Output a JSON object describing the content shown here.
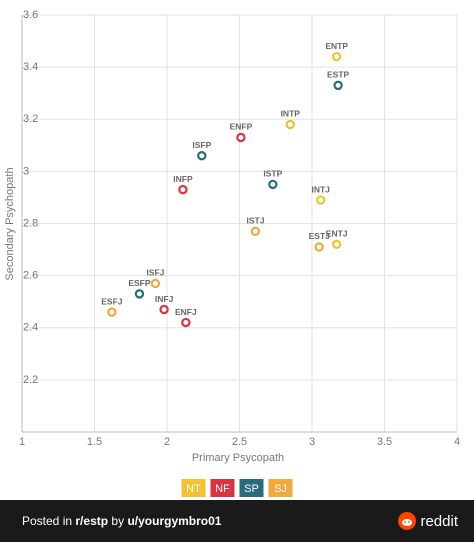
{
  "chart_data": {
    "type": "scatter",
    "x_label": "Primary Psycopath",
    "y_label": "Secondary Psychopath",
    "xlim": [
      1,
      4
    ],
    "xticks": [
      1,
      1.5,
      2,
      2.5,
      3,
      3.5,
      4
    ],
    "ylim": [
      2.0,
      3.6
    ],
    "yticks": [
      2.2,
      2.4,
      2.6,
      2.8,
      3,
      3.2,
      3.4,
      3.6
    ],
    "grid": true,
    "legend": "bottom",
    "series": [
      {
        "name": "NT",
        "color": "#f2c230",
        "labels": [
          "ENTP",
          "INTP",
          "INTJ",
          "ENTJ"
        ],
        "x": [
          3.17,
          2.85,
          3.06,
          3.17
        ],
        "values": [
          3.44,
          3.18,
          2.89,
          2.72
        ]
      },
      {
        "name": "NF",
        "color": "#d9343f",
        "labels": [
          "ENFP",
          "INFP",
          "INFJ",
          "ENFJ"
        ],
        "x": [
          2.51,
          2.11,
          1.98,
          2.13
        ],
        "values": [
          3.13,
          2.93,
          2.47,
          2.42
        ]
      },
      {
        "name": "SP",
        "color": "#2a6b7c",
        "labels": [
          "ESTP",
          "ISFP",
          "ISTP",
          "ESFP"
        ],
        "x": [
          3.18,
          2.24,
          2.73,
          1.81
        ],
        "values": [
          3.33,
          3.06,
          2.95,
          2.53
        ]
      },
      {
        "name": "SJ",
        "color": "#f0a93a",
        "labels": [
          "ISTJ",
          "ESTJ",
          "ISFJ",
          "ESFJ"
        ],
        "x": [
          2.61,
          3.05,
          1.92,
          1.62
        ],
        "values": [
          2.77,
          2.71,
          2.57,
          2.46
        ]
      }
    ]
  },
  "post": {
    "posted_in": "Posted in",
    "subreddit": "r/estp",
    "by": "by",
    "user": "u/yourgymbro01",
    "brand": "reddit"
  }
}
